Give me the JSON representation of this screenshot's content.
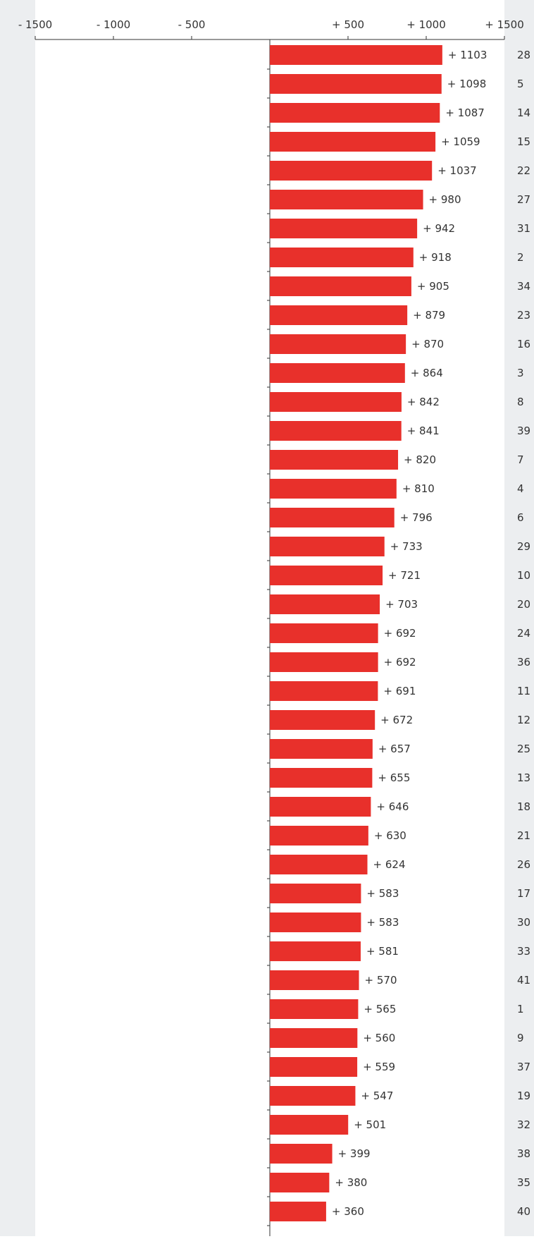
{
  "chart_data": {
    "type": "bar",
    "orientation": "horizontal",
    "title": "",
    "xlabel": "",
    "ylabel": "",
    "xlim": [
      -1500,
      1500
    ],
    "ticks": [
      {
        "value": -1500,
        "label": "- 1500"
      },
      {
        "value": -1000,
        "label": "- 1000"
      },
      {
        "value": -500,
        "label": "- 500"
      },
      {
        "value": 500,
        "label": "+ 500"
      },
      {
        "value": 1000,
        "label": "+ 1000"
      },
      {
        "value": 1500,
        "label": "+ 1500"
      }
    ],
    "grid": false,
    "colors": {
      "bar": "#e8302b",
      "side_panel": "#eceef0",
      "plot_bg": "#ffffff",
      "text": "#333333",
      "axis": "#333333"
    },
    "categories": [
      "28",
      "5",
      "14",
      "15",
      "22",
      "27",
      "31",
      "2",
      "34",
      "23",
      "16",
      "3",
      "8",
      "39",
      "7",
      "4",
      "6",
      "29",
      "10",
      "20",
      "24",
      "36",
      "11",
      "12",
      "25",
      "13",
      "18",
      "21",
      "26",
      "17",
      "30",
      "33",
      "41",
      "1",
      "9",
      "37",
      "19",
      "32",
      "38",
      "35",
      "40"
    ],
    "values": [
      1103,
      1098,
      1087,
      1059,
      1037,
      980,
      942,
      918,
      905,
      879,
      870,
      864,
      842,
      841,
      820,
      810,
      796,
      733,
      721,
      703,
      692,
      692,
      691,
      672,
      657,
      655,
      646,
      630,
      624,
      583,
      583,
      581,
      570,
      565,
      560,
      559,
      547,
      501,
      399,
      380,
      360
    ],
    "value_labels": [
      "+ 1103",
      "+ 1098",
      "+ 1087",
      "+ 1059",
      "+ 1037",
      "+ 980",
      "+ 942",
      "+ 918",
      "+ 905",
      "+ 879",
      "+ 870",
      "+ 864",
      "+ 842",
      "+ 841",
      "+ 820",
      "+ 810",
      "+ 796",
      "+ 733",
      "+ 721",
      "+ 703",
      "+ 692",
      "+ 692",
      "+ 691",
      "+ 672",
      "+ 657",
      "+ 655",
      "+ 646",
      "+ 630",
      "+ 624",
      "+ 583",
      "+ 583",
      "+ 581",
      "+ 570",
      "+ 565",
      "+ 560",
      "+ 559",
      "+ 547",
      "+ 501",
      "+ 399",
      "+ 380",
      "+ 360"
    ]
  }
}
